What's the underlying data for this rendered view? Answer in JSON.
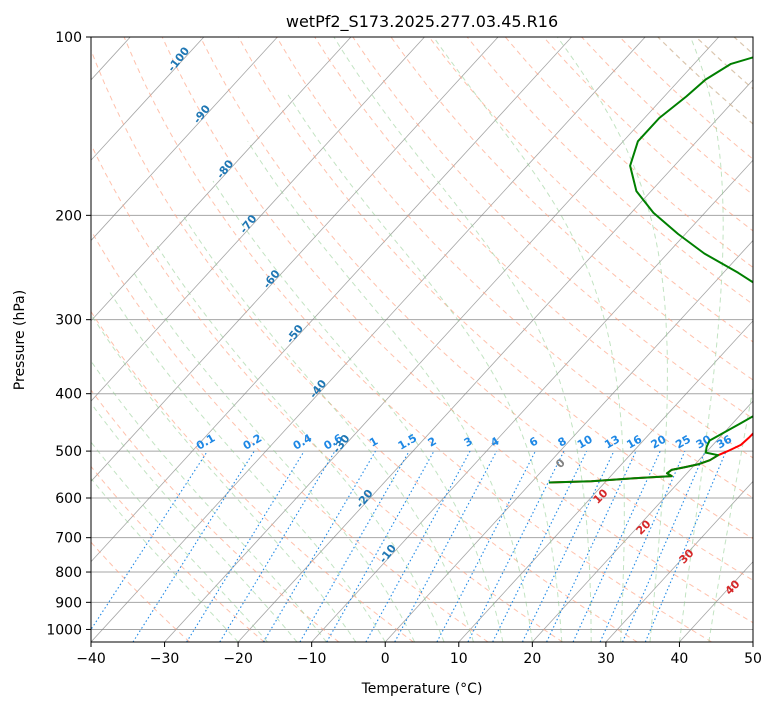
{
  "chart_data": {
    "type": "line",
    "subtype": "skew-t log-p",
    "title": "wetPf2_S173.2025.277.03.45.R16",
    "xlabel": "Temperature (°C)",
    "ylabel": "Pressure (hPa)",
    "xlim": [
      -40,
      50
    ],
    "ylim": [
      1050,
      100
    ],
    "x_ticks": [
      "−40",
      "−30",
      "−20",
      "−10",
      "0",
      "10",
      "20",
      "30",
      "40",
      "50"
    ],
    "x_tick_values": [
      -40,
      -30,
      -20,
      -10,
      0,
      10,
      20,
      30,
      40,
      50
    ],
    "y_ticks": [
      "100",
      "200",
      "300",
      "400",
      "500",
      "600",
      "700",
      "800",
      "900",
      "1000"
    ],
    "y_tick_values": [
      100,
      200,
      300,
      400,
      500,
      600,
      700,
      800,
      900,
      1000
    ],
    "colors": {
      "temperature": "#ff0000",
      "dewpoint": "#007f00",
      "isotherm": "#808080",
      "dry_adiabat": "#ff9f80",
      "moist_adiabat": "#8fcc8f",
      "mixing_ratio": "#1e88e5",
      "isotherm_label": "#1f77b4",
      "dry_label": "#d62728",
      "zero_label": "#808080"
    },
    "series": [
      {
        "name": "Temperature",
        "points": [
          [
            2.4,
            565
          ],
          [
            8,
            562
          ],
          [
            14,
            555
          ],
          [
            18.3,
            551
          ],
          [
            17.3,
            545
          ],
          [
            17.5,
            538
          ],
          [
            19,
            532
          ],
          [
            20.5,
            526
          ],
          [
            21.5,
            518
          ],
          [
            22,
            508
          ],
          [
            22.8,
            500
          ],
          [
            23.8,
            488
          ],
          [
            24,
            475
          ],
          [
            24.1,
            460
          ],
          [
            24.8,
            440
          ],
          [
            25.7,
            420
          ],
          [
            26.4,
            400
          ],
          [
            26.6,
            385
          ],
          [
            26.5,
            370
          ],
          [
            25.8,
            355
          ],
          [
            24.8,
            340
          ],
          [
            23.9,
            330
          ],
          [
            23.2,
            322
          ],
          [
            22.3,
            314
          ],
          [
            21.4,
            306
          ],
          [
            20,
            300
          ]
        ]
      },
      {
        "name": "Dewpoint",
        "points": [
          [
            2.4,
            565
          ],
          [
            8,
            562
          ],
          [
            14,
            555
          ],
          [
            18.3,
            551
          ],
          [
            17.3,
            545
          ],
          [
            17.5,
            538
          ],
          [
            19,
            532
          ],
          [
            20.5,
            526
          ],
          [
            21.5,
            518
          ],
          [
            22,
            508
          ],
          [
            20,
            503
          ],
          [
            19.4,
            492
          ],
          [
            19,
            480
          ],
          [
            20,
            465
          ],
          [
            21,
            450
          ],
          [
            22,
            435
          ],
          [
            22.7,
            420
          ],
          [
            23,
            405
          ],
          [
            22.5,
            392
          ],
          [
            21.3,
            380
          ],
          [
            19.8,
            367
          ],
          [
            18.3,
            353
          ],
          [
            18,
            340
          ],
          [
            19,
            330
          ],
          [
            20.5,
            320
          ],
          [
            21,
            310
          ],
          [
            20,
            300
          ],
          [
            15,
            286
          ],
          [
            8,
            268
          ],
          [
            2,
            250
          ],
          [
            -5,
            232
          ],
          [
            -11,
            215
          ],
          [
            -17,
            198
          ],
          [
            -22,
            182
          ],
          [
            -26,
            165
          ],
          [
            -28,
            150
          ],
          [
            -28,
            137
          ],
          [
            -27,
            126
          ],
          [
            -26.5,
            118
          ],
          [
            -25,
            111
          ],
          [
            -21,
            106
          ],
          [
            -15,
            102
          ],
          [
            -9,
            100
          ]
        ]
      }
    ],
    "isotherm_labels": [
      "-100",
      "-90",
      "-80",
      "-70",
      "-60",
      "-50",
      "-40",
      "-30",
      "-20",
      "-10"
    ],
    "isotherm_label_values": [
      -100,
      -90,
      -80,
      -70,
      -60,
      -50,
      -40,
      -30,
      -20,
      -10
    ],
    "mixing_ratio_labels": [
      "0.1",
      "0.2",
      "0.4",
      "0.6",
      "1",
      "1.5",
      "2",
      "3",
      "4",
      "6",
      "8",
      "10",
      "13",
      "16",
      "20",
      "25",
      "30",
      "36"
    ],
    "mixing_ratio_values": [
      0.1,
      0.2,
      0.4,
      0.6,
      1,
      1.5,
      2,
      3,
      4,
      6,
      8,
      10,
      13,
      16,
      20,
      25,
      30,
      36
    ],
    "dry_adiabat_labels": [
      "0",
      "10",
      "20",
      "30",
      "40"
    ],
    "dry_adiabat_label_values": [
      0,
      10,
      20,
      30,
      40
    ]
  }
}
